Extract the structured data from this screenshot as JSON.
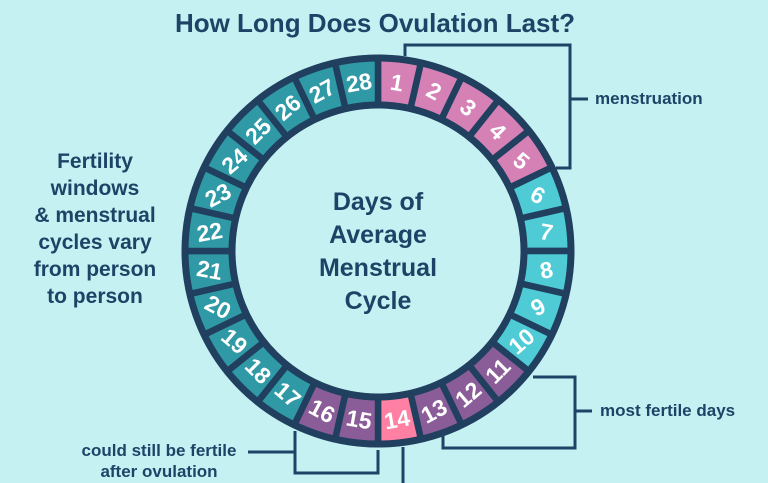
{
  "title": "How Long Does Ovulation Last?",
  "left_note": {
    "lines": [
      "Fertility",
      "windows",
      "& menstrual",
      "cycles vary",
      "from person",
      "to person"
    ]
  },
  "center_label": {
    "lines": [
      "Days of",
      "Average",
      "Menstrual",
      "Cycle"
    ]
  },
  "labels": {
    "menstruation": "menstruation",
    "most_fertile": "most fertile days",
    "after_ovulation_line1": "could still be fertile",
    "after_ovulation_line2": "after ovulation"
  },
  "colors": {
    "background": "#c6f1f2",
    "navy": "#1d4467",
    "segment_border": "#21405f",
    "number_text": "#ffffff",
    "categories": {
      "menstruation": "#d581b6",
      "low_fertility": "#4ecbd5",
      "most_fertile": "#8b5d98",
      "ovulation": "#ff80a2",
      "still_fertile": "#8b5d98",
      "post_ovulation": "#2f9aa6"
    }
  },
  "cycle_days": [
    {
      "day": 1,
      "category": "menstruation"
    },
    {
      "day": 2,
      "category": "menstruation"
    },
    {
      "day": 3,
      "category": "menstruation"
    },
    {
      "day": 4,
      "category": "menstruation"
    },
    {
      "day": 5,
      "category": "menstruation"
    },
    {
      "day": 6,
      "category": "low_fertility"
    },
    {
      "day": 7,
      "category": "low_fertility"
    },
    {
      "day": 8,
      "category": "low_fertility"
    },
    {
      "day": 9,
      "category": "low_fertility"
    },
    {
      "day": 10,
      "category": "low_fertility"
    },
    {
      "day": 11,
      "category": "most_fertile"
    },
    {
      "day": 12,
      "category": "most_fertile"
    },
    {
      "day": 13,
      "category": "most_fertile"
    },
    {
      "day": 14,
      "category": "ovulation"
    },
    {
      "day": 15,
      "category": "still_fertile"
    },
    {
      "day": 16,
      "category": "still_fertile"
    },
    {
      "day": 17,
      "category": "post_ovulation"
    },
    {
      "day": 18,
      "category": "post_ovulation"
    },
    {
      "day": 19,
      "category": "post_ovulation"
    },
    {
      "day": 20,
      "category": "post_ovulation"
    },
    {
      "day": 21,
      "category": "post_ovulation"
    },
    {
      "day": 22,
      "category": "post_ovulation"
    },
    {
      "day": 23,
      "category": "post_ovulation"
    },
    {
      "day": 24,
      "category": "post_ovulation"
    },
    {
      "day": 25,
      "category": "post_ovulation"
    },
    {
      "day": 26,
      "category": "post_ovulation"
    },
    {
      "day": 27,
      "category": "post_ovulation"
    },
    {
      "day": 28,
      "category": "post_ovulation"
    }
  ]
}
